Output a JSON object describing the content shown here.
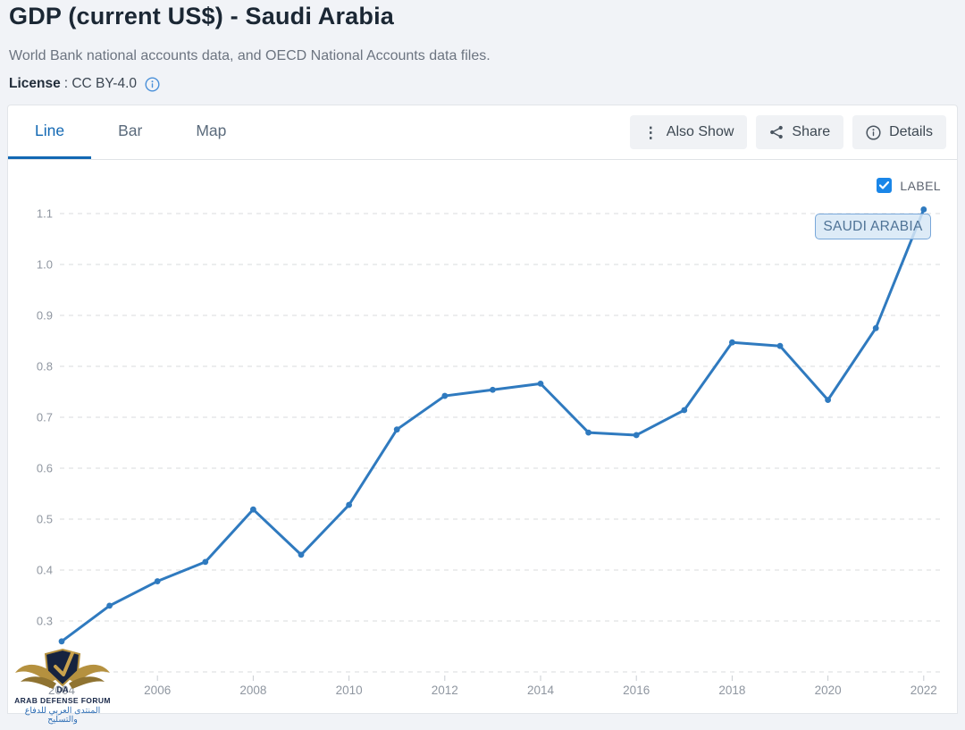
{
  "header": {
    "title": "GDP (current US$) - Saudi Arabia",
    "subtitle": "World Bank national accounts data, and OECD National Accounts data files.",
    "license_label": "License",
    "license_value": ": CC BY-4.0"
  },
  "toolbar": {
    "tabs": [
      {
        "label": "Line",
        "active": true
      },
      {
        "label": "Bar",
        "active": false
      },
      {
        "label": "Map",
        "active": false
      }
    ],
    "buttons": [
      {
        "label": "Also Show",
        "icon": "kebab-menu-icon"
      },
      {
        "label": "Share",
        "icon": "share-icon"
      },
      {
        "label": "Details",
        "icon": "info-icon"
      }
    ]
  },
  "chart": {
    "label_checkbox": {
      "label": "LABEL",
      "checked": true
    },
    "series_label": "SAUDI ARABIA"
  },
  "watermark": {
    "monogram": "DA",
    "line1": "ARAB DEFENSE FORUM",
    "line2": "المنتدى العربي للدفاع والتسليح"
  },
  "chart_data": {
    "type": "line",
    "title": "GDP (current US$) - Saudi Arabia",
    "x": [
      2004,
      2005,
      2006,
      2007,
      2008,
      2009,
      2010,
      2011,
      2012,
      2013,
      2014,
      2015,
      2016,
      2017,
      2018,
      2019,
      2020,
      2021,
      2022
    ],
    "series": [
      {
        "name": "SAUDI ARABIA",
        "values": [
          0.26,
          0.33,
          0.378,
          0.416,
          0.519,
          0.43,
          0.528,
          0.676,
          0.742,
          0.754,
          0.766,
          0.67,
          0.665,
          0.714,
          0.847,
          0.84,
          0.734,
          0.875,
          1.108
        ]
      }
    ],
    "xlabel": "",
    "ylabel": "",
    "ylim": [
      0.2,
      1.15
    ],
    "yticks": [
      0.3,
      0.4,
      0.5,
      0.6,
      0.7,
      0.8,
      0.9,
      1.0,
      1.1
    ],
    "ybaseline": 0.2,
    "xticks": [
      2004,
      2006,
      2008,
      2010,
      2012,
      2014,
      2016,
      2018,
      2020,
      2022
    ],
    "grid": "dashed-horizontal",
    "legend_position": "chart-label-near-last-point",
    "line_color": "#2f7abf",
    "grid_color": "#d9dbde",
    "axis_label_color": "#8f96a0"
  }
}
